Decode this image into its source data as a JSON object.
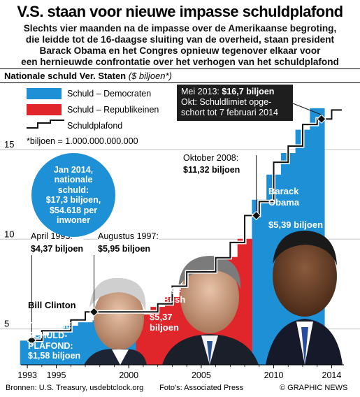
{
  "headline": "V.S. staan voor nieuwe impasse schuldplafond",
  "subhead_lines": [
    "Slechts vier maanden na de impasse over de Amerikaanse begroting,",
    "die leidde tot de 16-daagse sluiting van de overheid, staan president",
    "Barack Obama en het Congres opnieuw tegenover elkaar voor",
    "een hernieuwde confrontatie over het verhogen van het schuldplafond"
  ],
  "chart_title": "Nationale schuld Ver. Staten",
  "chart_unit": "($ biljoen*)",
  "legend": {
    "dem": "Schuld – Democraten",
    "rep": "Schuld – Republikeinen",
    "ceiling": "Schuldplafond",
    "footnote": "*biljoen = 1.000.000.000.000"
  },
  "colors": {
    "dem": "#1e90d6",
    "rep": "#e0262b",
    "ceiling": "#111111",
    "callout_bg": "#1e1e1e"
  },
  "chart_data": {
    "type": "bar",
    "title": "Nationale schuld Ver. Staten",
    "ylabel": "($ biljoen*)",
    "ylim": [
      3,
      18.5
    ],
    "yticks": [
      5,
      10,
      15
    ],
    "xtick_labels": [
      "1993",
      "1995",
      "2000",
      "2005",
      "2010",
      "2014"
    ],
    "xtick_values": [
      1993,
      1995,
      2000,
      2005,
      2010,
      2014
    ],
    "series": [
      {
        "name": "Schuld – Democraten",
        "x": [
          1993,
          1994,
          1995,
          1996,
          1997,
          1998,
          1999,
          2000,
          2001,
          2009,
          2010,
          2011,
          2012,
          2013
        ],
        "values": [
          4.35,
          4.64,
          4.92,
          5.18,
          5.37,
          5.48,
          5.61,
          5.67,
          5.81,
          12.2,
          13.6,
          14.8,
          16.1,
          17.3
        ]
      },
      {
        "name": "Schuld – Republikeinen",
        "x": [
          2001,
          2002,
          2003,
          2004,
          2005,
          2006,
          2007,
          2008
        ],
        "values": [
          5.81,
          6.23,
          6.78,
          7.38,
          7.93,
          8.51,
          9.01,
          10.02
        ]
      }
    ],
    "ceiling": {
      "name": "Schuldplafond",
      "x": [
        1993,
        1994,
        1996,
        1997,
        2002,
        2003,
        2004,
        2006,
        2007,
        2008,
        2009,
        2010,
        2011,
        2012,
        2013,
        2014
      ],
      "values": [
        4.37,
        4.9,
        5.5,
        5.95,
        6.4,
        7.38,
        8.18,
        8.97,
        9.82,
        11.32,
        12.1,
        14.29,
        15.19,
        16.39,
        16.7,
        17.2
      ]
    },
    "markers": [
      {
        "x": 1993.3,
        "y": 4.37
      },
      {
        "x": 1997.6,
        "y": 5.95
      },
      {
        "x": 2008.8,
        "y": 11.32
      },
      {
        "x": 2013.3,
        "y": 16.7
      }
    ]
  },
  "annotations": {
    "apr93_label": "April 1993:",
    "apr93_value": "$4,37 biljoen",
    "aug97_label": "Augustus 1997:",
    "aug97_value": "$5,95 biljoen",
    "oct08_label": "Oktober 2008:",
    "oct08_value": "$11,32 biljoen",
    "may13_prefix": "Mei 2013: ",
    "may13_value": "$16,7 biljoen",
    "oct13_line1": "Okt: Schuldlimiet opge-",
    "oct13_line2": "schort tot 7 februari 2014"
  },
  "circle": [
    "Jan 2014,",
    "nationale",
    "schuld:",
    "$17,3 biljoen,",
    "$54.618 per",
    "inwoner"
  ],
  "presidents": {
    "clinton": {
      "name": "Bill Clinton",
      "extra": [
        "TOENAME",
        "SCHULD-",
        "PLAFOND:",
        "$1,58 biljoen"
      ]
    },
    "bush": {
      "name_lines": [
        "George",
        "W. Bush"
      ],
      "extra": [
        "$5,37",
        "biljoen"
      ]
    },
    "obama": {
      "name_lines": [
        "Barack",
        "Obama"
      ],
      "extra": [
        "$5,39 biljoen"
      ]
    }
  },
  "footer": {
    "sources": "Bronnen: U.S. Treasury, usdebtclock.org",
    "photos": "Foto's: Associated Press",
    "credit": "© GRAPHIC NEWS"
  }
}
